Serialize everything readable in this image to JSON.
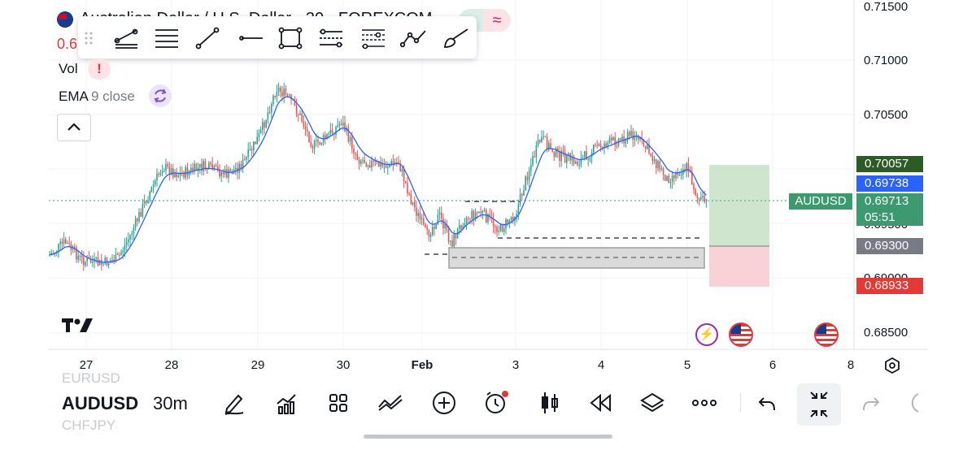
{
  "header": {
    "title": "Australian Dollar / U.S. Dollar · 30 · FOREXCOM",
    "price_fragment": "0.6",
    "vol_label": "Vol",
    "ema_label": "EMA",
    "ema_params": "9 close",
    "wave_symbol": "≈",
    "alert_symbol": "!"
  },
  "drawing_toolbar": {
    "tools": [
      "trend-angle",
      "horizontal-lines",
      "trend-line",
      "horizontal-ray",
      "rectangle",
      "parallel-channel",
      "fib-channel",
      "path",
      "brush"
    ]
  },
  "price_axis": {
    "ticks": [
      "0.71500",
      "0.71000",
      "0.70500",
      "0.69500",
      "0.69000",
      "0.68500"
    ]
  },
  "price_badges": {
    "target": "0.70057",
    "ema_value": "0.69738",
    "symbol": "AUDUSD",
    "last_price": "0.69713",
    "countdown": "05:51",
    "entry": "0.69300",
    "stop": "0.68933"
  },
  "time_axis": {
    "ticks": [
      "27",
      "28",
      "29",
      "30",
      "Feb",
      "3",
      "4",
      "5",
      "6",
      "8"
    ]
  },
  "colors": {
    "up_candle": "#26a69a",
    "down_candle": "#ef5350",
    "ema": "#2962ff",
    "target_badge": "#2e5a26",
    "ema_badge": "#2962ff",
    "last_badge": "#3d9970",
    "entry_badge": "#787b86",
    "stop_badge": "#e53935"
  },
  "bottom_bar": {
    "symbol": "AUDUSD",
    "interval": "30m",
    "prev_symbol": "EURUSD",
    "next_symbol": "CHFJPY"
  },
  "logo_text": "TV"
}
